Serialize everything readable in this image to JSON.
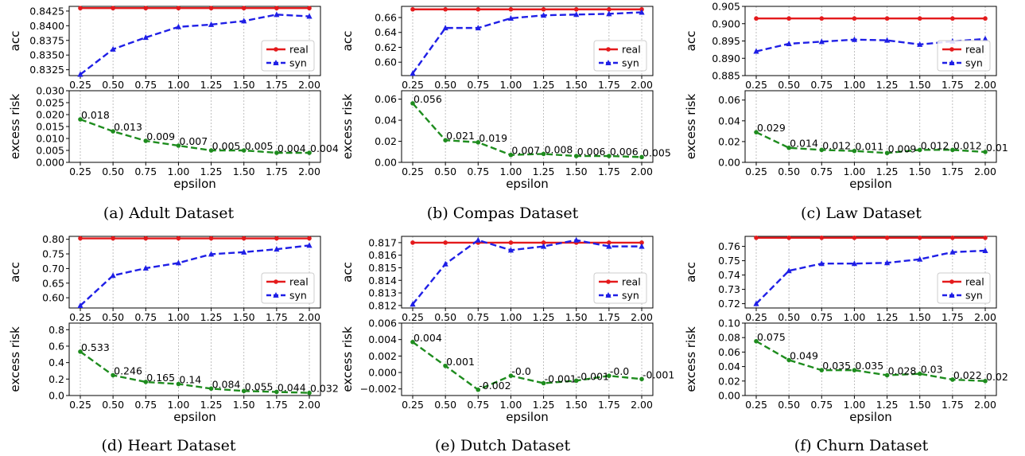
{
  "colors": {
    "real": "#e41a1c",
    "syn": "#1f1fe6",
    "risk": "#1e8c1e",
    "grid": "#b0b0b0"
  },
  "x_ticks": [
    "0.25",
    "0.50",
    "0.75",
    "1.00",
    "1.25",
    "1.50",
    "1.75",
    "2.00"
  ],
  "x_label": "epsilon",
  "acc_label": "acc",
  "risk_label": "excess risk",
  "legend": {
    "real": "real",
    "syn": "syn",
    "position": "lower-right"
  },
  "chart_data": [
    {
      "id": "adult",
      "caption": "(a)  Adult Dataset",
      "type": "line",
      "x": [
        0.25,
        0.5,
        0.75,
        1.0,
        1.25,
        1.5,
        1.75,
        2.0
      ],
      "acc": {
        "ylim": [
          0.8315,
          0.8433
        ],
        "ticks": [
          "0.8325",
          "0.8350",
          "0.8375",
          "0.8400",
          "0.8425"
        ],
        "tick_values": [
          0.8325,
          0.835,
          0.8375,
          0.84,
          0.8425
        ],
        "real": [
          0.843,
          0.843,
          0.843,
          0.843,
          0.843,
          0.843,
          0.843,
          0.843
        ],
        "syn": [
          0.8317,
          0.836,
          0.838,
          0.8398,
          0.8402,
          0.8408,
          0.8419,
          0.8416
        ]
      },
      "risk": {
        "ylim": [
          0,
          0.03
        ],
        "ticks": [
          "0.000",
          "0.005",
          "0.010",
          "0.015",
          "0.020",
          "0.025",
          "0.030"
        ],
        "tick_values": [
          0,
          0.005,
          0.01,
          0.015,
          0.02,
          0.025,
          0.03
        ],
        "values": [
          0.018,
          0.013,
          0.009,
          0.007,
          0.005,
          0.005,
          0.004,
          0.004
        ],
        "labels": [
          "0.018",
          "0.013",
          "0.009",
          "0.007",
          "0.005",
          "0.005",
          "0.004",
          "0.004"
        ]
      }
    },
    {
      "id": "compas",
      "caption": "(b)  Compas Dataset",
      "type": "line",
      "x": [
        0.25,
        0.5,
        0.75,
        1.0,
        1.25,
        1.5,
        1.75,
        2.0
      ],
      "acc": {
        "ylim": [
          0.582,
          0.675
        ],
        "ticks": [
          "0.60",
          "0.62",
          "0.64",
          "0.66"
        ],
        "tick_values": [
          0.6,
          0.62,
          0.64,
          0.66
        ],
        "real": [
          0.671,
          0.671,
          0.671,
          0.671,
          0.671,
          0.671,
          0.671,
          0.671
        ],
        "syn": [
          0.585,
          0.646,
          0.646,
          0.659,
          0.663,
          0.664,
          0.665,
          0.667
        ]
      },
      "risk": {
        "ylim": [
          0,
          0.068
        ],
        "ticks": [
          "0.00",
          "0.02",
          "0.04",
          "0.06"
        ],
        "tick_values": [
          0,
          0.02,
          0.04,
          0.06
        ],
        "values": [
          0.056,
          0.021,
          0.019,
          0.007,
          0.008,
          0.006,
          0.006,
          0.005
        ],
        "labels": [
          "0.056",
          "0.021",
          "0.019",
          "0.007",
          "0.008",
          "0.006",
          "0.006",
          "0.005"
        ]
      }
    },
    {
      "id": "law",
      "caption": "(c)  Law Dataset",
      "type": "line",
      "x": [
        0.25,
        0.5,
        0.75,
        1.0,
        1.25,
        1.5,
        1.75,
        2.0
      ],
      "acc": {
        "ylim": [
          0.885,
          0.905
        ],
        "ticks": [
          "0.885",
          "0.890",
          "0.895",
          "0.900",
          "0.905"
        ],
        "tick_values": [
          0.885,
          0.89,
          0.895,
          0.9,
          0.905
        ],
        "real": [
          0.9015,
          0.9015,
          0.9015,
          0.9015,
          0.9015,
          0.9015,
          0.9015,
          0.9015
        ],
        "syn": [
          0.892,
          0.8942,
          0.8948,
          0.8954,
          0.8952,
          0.894,
          0.8949,
          0.8956
        ]
      },
      "risk": {
        "ylim": [
          0,
          0.069
        ],
        "ticks": [
          "0.00",
          "0.02",
          "0.04",
          "0.06"
        ],
        "tick_values": [
          0,
          0.02,
          0.04,
          0.06
        ],
        "values": [
          0.029,
          0.014,
          0.012,
          0.011,
          0.009,
          0.012,
          0.012,
          0.01
        ],
        "labels": [
          "0.029",
          "0.014",
          "0.012",
          "0.011",
          "0.009",
          "0.012",
          "0.012",
          "0.01"
        ]
      }
    },
    {
      "id": "heart",
      "caption": "(d)  Heart Dataset",
      "type": "line",
      "x": [
        0.25,
        0.5,
        0.75,
        1.0,
        1.25,
        1.5,
        1.75,
        2.0
      ],
      "acc": {
        "ylim": [
          0.565,
          0.81
        ],
        "ticks": [
          "0.60",
          "0.65",
          "0.70",
          "0.75",
          "0.80"
        ],
        "tick_values": [
          0.6,
          0.65,
          0.7,
          0.75,
          0.8
        ],
        "real": [
          0.803,
          0.803,
          0.803,
          0.803,
          0.803,
          0.803,
          0.803,
          0.803
        ],
        "syn": [
          0.573,
          0.676,
          0.701,
          0.719,
          0.749,
          0.756,
          0.766,
          0.779
        ]
      },
      "risk": {
        "ylim": [
          0,
          0.88
        ],
        "ticks": [
          "0.0",
          "0.2",
          "0.4",
          "0.6",
          "0.8"
        ],
        "tick_values": [
          0,
          0.2,
          0.4,
          0.6,
          0.8
        ],
        "values": [
          0.533,
          0.246,
          0.165,
          0.14,
          0.084,
          0.055,
          0.044,
          0.032
        ],
        "labels": [
          "0.533",
          "0.246",
          "0.165",
          "0.14",
          "0.084",
          "0.055",
          "0.044",
          "0.032"
        ]
      }
    },
    {
      "id": "dutch",
      "caption": "(e)  Dutch Dataset",
      "type": "line",
      "x": [
        0.25,
        0.5,
        0.75,
        1.0,
        1.25,
        1.5,
        1.75,
        2.0
      ],
      "acc": {
        "ylim": [
          0.8118,
          0.8175
        ],
        "ticks": [
          "0.812",
          "0.813",
          "0.814",
          "0.815",
          "0.816",
          "0.817"
        ],
        "tick_values": [
          0.812,
          0.813,
          0.814,
          0.815,
          0.816,
          0.817
        ],
        "real": [
          0.817,
          0.817,
          0.817,
          0.817,
          0.817,
          0.817,
          0.817,
          0.817
        ],
        "syn": [
          0.8121,
          0.8153,
          0.8172,
          0.8164,
          0.8167,
          0.8172,
          0.8167,
          0.8167
        ]
      },
      "risk": {
        "ylim": [
          -0.0028,
          0.006
        ],
        "ticks": [
          "−0.002",
          "0.000",
          "0.002",
          "0.004",
          "0.006"
        ],
        "tick_values": [
          -0.002,
          0,
          0.002,
          0.004,
          0.006
        ],
        "values": [
          0.0037,
          0.0008,
          -0.0021,
          -0.0004,
          -0.0013,
          -0.001,
          -0.0004,
          -0.0008
        ],
        "labels": [
          "0.004",
          "0.001",
          "-0.002",
          "-0.0",
          "-0.001",
          "-0.001",
          "-0.0",
          "-0.001"
        ]
      }
    },
    {
      "id": "churn",
      "caption": "(f)  Churn Dataset",
      "type": "line",
      "x": [
        0.25,
        0.5,
        0.75,
        1.0,
        1.25,
        1.5,
        1.75,
        2.0
      ],
      "acc": {
        "ylim": [
          0.717,
          0.767
        ],
        "ticks": [
          "0.72",
          "0.73",
          "0.74",
          "0.75",
          "0.76"
        ],
        "tick_values": [
          0.72,
          0.73,
          0.74,
          0.75,
          0.76
        ],
        "real": [
          0.766,
          0.766,
          0.766,
          0.766,
          0.766,
          0.766,
          0.766,
          0.766
        ],
        "syn": [
          0.72,
          0.743,
          0.748,
          0.748,
          0.7485,
          0.751,
          0.756,
          0.757
        ]
      },
      "risk": {
        "ylim": [
          0,
          0.1
        ],
        "ticks": [
          "0.00",
          "0.02",
          "0.04",
          "0.06",
          "0.08",
          "0.10"
        ],
        "tick_values": [
          0,
          0.02,
          0.04,
          0.06,
          0.08,
          0.1
        ],
        "values": [
          0.075,
          0.049,
          0.035,
          0.035,
          0.028,
          0.03,
          0.022,
          0.02
        ],
        "labels": [
          "0.075",
          "0.049",
          "0.035",
          "0.035",
          "0.028",
          "0.03",
          "0.022",
          "0.02"
        ]
      }
    }
  ]
}
